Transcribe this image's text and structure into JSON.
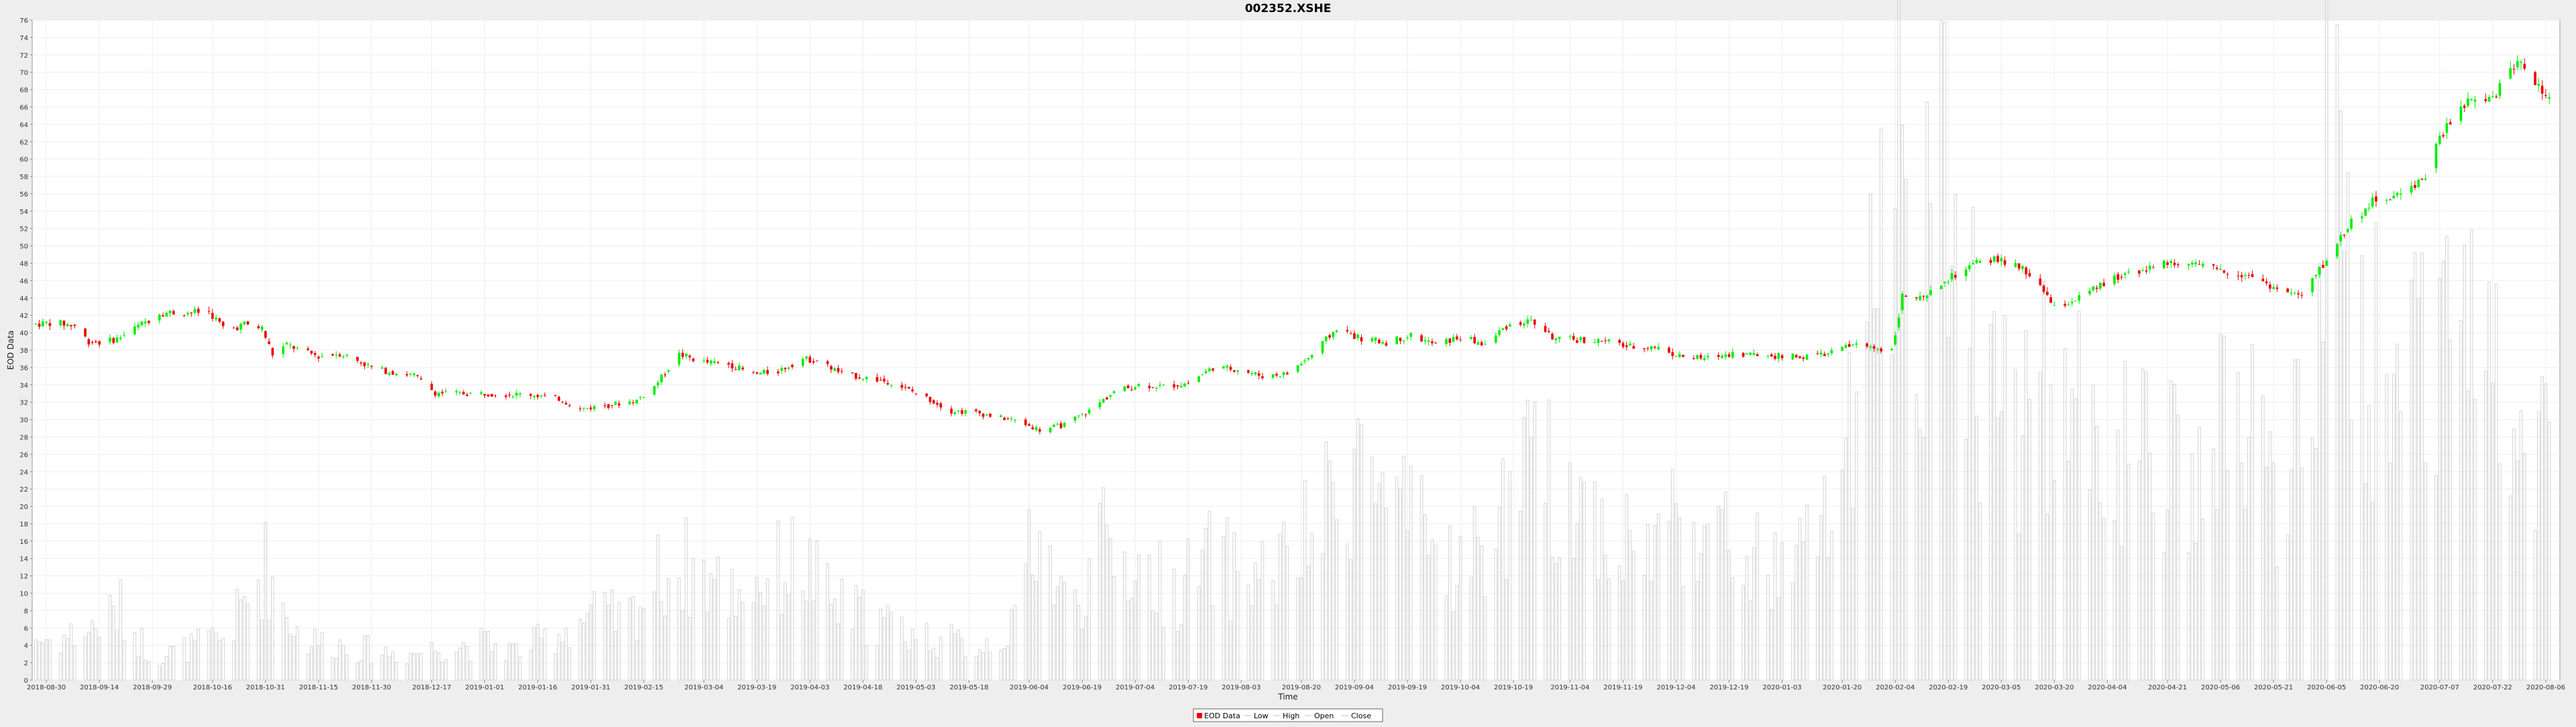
{
  "chart_data": {
    "type": "candlestick",
    "title": "002352.XSHE",
    "xlabel": "Time",
    "ylabel": "EOD Data",
    "ylim": [
      0,
      76
    ],
    "y_ticks": [
      0,
      2,
      4,
      6,
      8,
      10,
      12,
      14,
      16,
      18,
      20,
      22,
      24,
      26,
      28,
      30,
      32,
      34,
      36,
      38,
      40,
      42,
      44,
      46,
      48,
      50,
      52,
      54,
      56,
      58,
      60,
      62,
      64,
      66,
      68,
      70,
      72,
      74,
      76
    ],
    "x_range": [
      "2018-08-26",
      "2020-08-10"
    ],
    "x_ticks": [
      "2018-08-30",
      "2018-09-14",
      "2018-09-29",
      "2018-10-16",
      "2018-10-31",
      "2018-11-15",
      "2018-11-30",
      "2018-12-17",
      "2019-01-01",
      "2019-01-16",
      "2019-01-31",
      "2019-02-15",
      "2019-03-04",
      "2019-03-19",
      "2019-04-03",
      "2019-04-18",
      "2019-05-03",
      "2019-05-18",
      "2019-06-04",
      "2019-06-19",
      "2019-07-04",
      "2019-07-19",
      "2019-08-03",
      "2019-08-20",
      "2019-09-04",
      "2019-09-19",
      "2019-10-04",
      "2019-10-19",
      "2019-11-04",
      "2019-11-19",
      "2019-12-04",
      "2019-12-19",
      "2020-01-03",
      "2020-01-20",
      "2020-02-04",
      "2020-02-19",
      "2020-03-05",
      "2020-03-20",
      "2020-04-04",
      "2020-04-21",
      "2020-05-06",
      "2020-05-21",
      "2020-06-05",
      "2020-06-20",
      "2020-07-07",
      "2020-07-22",
      "2020-08-06"
    ],
    "grid": true,
    "legend_position": "bottom-center",
    "legend": [
      "EOD Data",
      "Low",
      "High",
      "Open",
      "Close"
    ],
    "colors": {
      "up": "#00ee00",
      "down": "#ee0000",
      "volume": "#d4d4d4",
      "grid": "#eeeeee",
      "plot_bg": "#ffffff",
      "page_bg": "#eeeeee"
    },
    "close_series": [
      [
        "2018-08-27",
        41.0
      ],
      [
        "2018-09-01",
        41.2
      ],
      [
        "2018-09-07",
        40.8
      ],
      [
        "2018-09-11",
        39.0
      ],
      [
        "2018-09-15",
        38.9
      ],
      [
        "2018-09-19",
        39.3
      ],
      [
        "2018-09-24",
        40.5
      ],
      [
        "2018-09-28",
        41.5
      ],
      [
        "2018-10-01",
        42.3
      ],
      [
        "2018-10-05",
        42.3
      ],
      [
        "2018-10-15",
        42.4
      ],
      [
        "2018-10-20",
        40.2
      ],
      [
        "2018-10-25",
        41.0
      ],
      [
        "2018-10-30",
        40.5
      ],
      [
        "2018-11-02",
        37.5
      ],
      [
        "2018-11-06",
        38.6
      ],
      [
        "2018-11-11",
        37.8
      ],
      [
        "2018-11-15",
        37.3
      ],
      [
        "2018-11-21",
        37.6
      ],
      [
        "2018-11-26",
        36.8
      ],
      [
        "2018-12-01",
        35.8
      ],
      [
        "2018-12-07",
        35.4
      ],
      [
        "2018-12-12",
        35.1
      ],
      [
        "2018-12-18",
        33.1
      ],
      [
        "2018-12-24",
        33.0
      ],
      [
        "2019-01-01",
        33.0
      ],
      [
        "2019-01-08",
        32.9
      ],
      [
        "2019-01-14",
        32.9
      ],
      [
        "2019-01-22",
        32.4
      ],
      [
        "2019-01-28",
        31.2
      ],
      [
        "2019-02-04",
        31.6
      ],
      [
        "2019-02-13",
        32.2
      ],
      [
        "2019-02-18",
        33.8
      ],
      [
        "2019-02-25",
        37.5
      ],
      [
        "2019-03-04",
        36.6
      ],
      [
        "2019-03-11",
        36.4
      ],
      [
        "2019-03-18",
        35.2
      ],
      [
        "2019-03-25",
        35.6
      ],
      [
        "2019-04-01",
        37.0
      ],
      [
        "2019-04-05",
        36.8
      ],
      [
        "2019-04-12",
        35.3
      ],
      [
        "2019-04-19",
        34.8
      ],
      [
        "2019-04-26",
        34.3
      ],
      [
        "2019-05-06",
        32.5
      ],
      [
        "2019-05-13",
        31.0
      ],
      [
        "2019-05-20",
        30.8
      ],
      [
        "2019-05-27",
        30.2
      ],
      [
        "2019-06-01",
        29.8
      ],
      [
        "2019-06-07",
        28.8
      ],
      [
        "2019-06-14",
        29.4
      ],
      [
        "2019-06-21",
        31.0
      ],
      [
        "2019-06-28",
        33.2
      ],
      [
        "2019-07-05",
        34.0
      ],
      [
        "2019-07-12",
        33.8
      ],
      [
        "2019-07-19",
        34.2
      ],
      [
        "2019-07-26",
        36.0
      ],
      [
        "2019-08-02",
        35.8
      ],
      [
        "2019-08-09",
        35.0
      ],
      [
        "2019-08-16",
        35.3
      ],
      [
        "2019-08-23",
        37.4
      ],
      [
        "2019-08-30",
        40.5
      ],
      [
        "2019-09-06",
        39.3
      ],
      [
        "2019-09-13",
        38.9
      ],
      [
        "2019-09-20",
        39.7
      ],
      [
        "2019-09-27",
        38.6
      ],
      [
        "2019-10-04",
        39.5
      ],
      [
        "2019-10-11",
        38.6
      ],
      [
        "2019-10-17",
        40.8
      ],
      [
        "2019-10-24",
        41.4
      ],
      [
        "2019-10-31",
        39.2
      ],
      [
        "2019-11-07",
        39.2
      ],
      [
        "2019-11-14",
        39.0
      ],
      [
        "2019-11-21",
        38.4
      ],
      [
        "2019-11-28",
        38.4
      ],
      [
        "2019-12-05",
        37.3
      ],
      [
        "2019-12-12",
        37.0
      ],
      [
        "2019-12-19",
        37.6
      ],
      [
        "2019-12-26",
        37.5
      ],
      [
        "2020-01-02",
        37.3
      ],
      [
        "2020-01-09",
        37.2
      ],
      [
        "2020-01-16",
        37.6
      ],
      [
        "2020-01-23",
        38.6
      ],
      [
        "2020-02-03",
        38.0
      ],
      [
        "2020-02-06",
        44.2
      ],
      [
        "2020-02-12",
        43.8
      ],
      [
        "2020-02-19",
        46.2
      ],
      [
        "2020-02-26",
        47.8
      ],
      [
        "2020-03-04",
        48.5
      ],
      [
        "2020-03-11",
        47.2
      ],
      [
        "2020-03-16",
        45.6
      ],
      [
        "2020-03-20",
        42.8
      ],
      [
        "2020-03-27",
        44.0
      ],
      [
        "2020-04-03",
        45.6
      ],
      [
        "2020-04-10",
        47.0
      ],
      [
        "2020-04-17",
        47.6
      ],
      [
        "2020-04-24",
        48.2
      ],
      [
        "2020-05-01",
        47.5
      ],
      [
        "2020-05-08",
        47.0
      ],
      [
        "2020-05-15",
        46.6
      ],
      [
        "2020-05-22",
        45.0
      ],
      [
        "2020-05-29",
        44.2
      ],
      [
        "2020-06-05",
        48.4
      ],
      [
        "2020-06-12",
        52.8
      ],
      [
        "2020-06-19",
        55.4
      ],
      [
        "2020-06-26",
        55.8
      ],
      [
        "2020-07-03",
        58.2
      ],
      [
        "2020-07-08",
        63.2
      ],
      [
        "2020-07-15",
        66.5
      ],
      [
        "2020-07-22",
        66.9
      ],
      [
        "2020-07-29",
        71.5
      ],
      [
        "2020-08-05",
        68.0
      ],
      [
        "2020-08-10",
        65.0
      ]
    ],
    "volume_scale_note": "Volume bars plotted on the price axis scale",
    "volume_series": [
      [
        "2018-09-01",
        5.5
      ],
      [
        "2018-09-10",
        6.5
      ],
      [
        "2018-09-20",
        9.5
      ],
      [
        "2018-09-29",
        3.0
      ],
      [
        "2018-10-10",
        4.5
      ],
      [
        "2018-10-20",
        6.0
      ],
      [
        "2018-10-31",
        15.5
      ],
      [
        "2018-11-10",
        5.5
      ],
      [
        "2018-11-20",
        5.0
      ],
      [
        "2018-11-30",
        4.0
      ],
      [
        "2018-12-10",
        3.5
      ],
      [
        "2018-12-20",
        4.5
      ],
      [
        "2019-01-01",
        5.0
      ],
      [
        "2019-01-10",
        4.0
      ],
      [
        "2019-01-20",
        6.0
      ],
      [
        "2019-01-31",
        9.0
      ],
      [
        "2019-02-10",
        8.0
      ],
      [
        "2019-02-20",
        14.5
      ],
      [
        "2019-03-01",
        15.5
      ],
      [
        "2019-03-10",
        12.0
      ],
      [
        "2019-03-20",
        13.5
      ],
      [
        "2019-03-31",
        16.5
      ],
      [
        "2019-04-10",
        10.0
      ],
      [
        "2019-04-20",
        8.5
      ],
      [
        "2019-05-01",
        6.5
      ],
      [
        "2019-05-10",
        5.5
      ],
      [
        "2019-05-20",
        4.5
      ],
      [
        "2019-05-31",
        7.0
      ],
      [
        "2019-06-05",
        22.5
      ],
      [
        "2019-06-15",
        9.0
      ],
      [
        "2019-06-25",
        18.0
      ],
      [
        "2019-07-05",
        15.0
      ],
      [
        "2019-07-15",
        12.0
      ],
      [
        "2019-07-25",
        16.0
      ],
      [
        "2019-08-05",
        14.0
      ],
      [
        "2019-08-15",
        15.5
      ],
      [
        "2019-08-25",
        20.5
      ],
      [
        "2019-09-05",
        31.5
      ],
      [
        "2019-09-15",
        22.0
      ],
      [
        "2019-09-25",
        18.5
      ],
      [
        "2019-10-05",
        15.0
      ],
      [
        "2019-10-15",
        21.5
      ],
      [
        "2019-10-25",
        28.0
      ],
      [
        "2019-11-05",
        25.5
      ],
      [
        "2019-11-15",
        20.5
      ],
      [
        "2019-11-25",
        17.0
      ],
      [
        "2019-12-05",
        23.0
      ],
      [
        "2019-12-15",
        19.0
      ],
      [
        "2019-12-25",
        16.5
      ],
      [
        "2020-01-05",
        13.5
      ],
      [
        "2020-01-15",
        22.5
      ],
      [
        "2020-01-25",
        34.0
      ],
      [
        "2020-02-04",
        75.0
      ],
      [
        "2020-02-10",
        59.0
      ],
      [
        "2020-02-20",
        65.5
      ],
      [
        "2020-03-01",
        40.0
      ],
      [
        "2020-03-10",
        36.5
      ],
      [
        "2020-03-20",
        38.5
      ],
      [
        "2020-03-31",
        34.5
      ],
      [
        "2020-04-10",
        30.0
      ],
      [
        "2020-04-20",
        29.0
      ],
      [
        "2020-04-30",
        26.0
      ],
      [
        "2020-05-10",
        39.0
      ],
      [
        "2020-05-20",
        25.0
      ],
      [
        "2020-05-31",
        35.0
      ],
      [
        "2020-06-05",
        70.5
      ],
      [
        "2020-06-15",
        43.5
      ],
      [
        "2020-06-25",
        44.0
      ],
      [
        "2020-07-05",
        52.5
      ],
      [
        "2020-07-15",
        44.5
      ],
      [
        "2020-07-25",
        44.5
      ],
      [
        "2020-08-05",
        34.0
      ]
    ]
  }
}
